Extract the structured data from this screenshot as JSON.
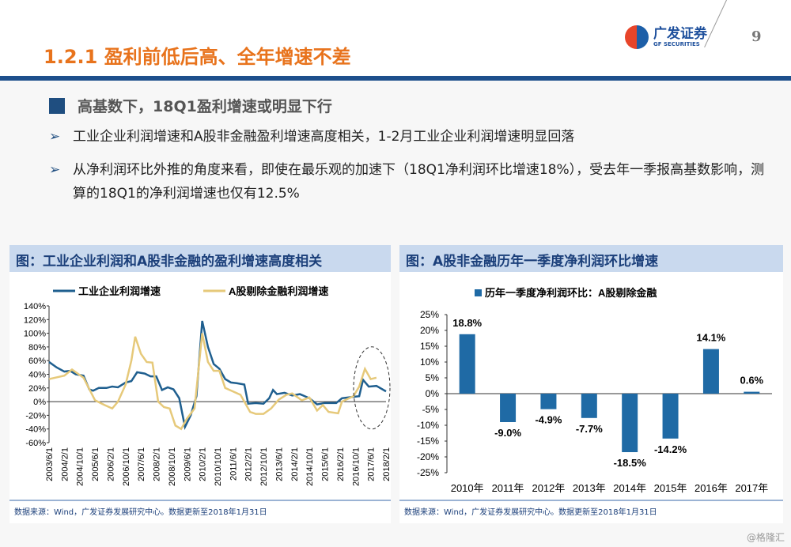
{
  "header": {
    "title": "1.2.1 盈利前低后高、全年增速不差",
    "logo_cn": "广发证券",
    "logo_en": "GF SECURITIES",
    "page": "9"
  },
  "main": {
    "heading": "高基数下，18Q1盈利增速或明显下行",
    "bullets": [
      "工业企业利润增速和A股非金融盈利增速高度相关，1-2月工业企业利润增速明显回落",
      "从净利润环比外推的角度来看，即使在最乐观的加速下（18Q1净利润环比增速18%），受去年一季报高基数影响，测算的18Q1的净利润增速也仅有12.5%"
    ],
    "bullet_icon": "arrow-right-icon"
  },
  "watermark": "@格隆汇",
  "chart_data": [
    {
      "type": "line",
      "title": "图：工业企业利润和A股非金融的盈利增速高度相关",
      "source": "数据来源：Wind，广发证券发展研究中心。数据更新至2018年1月31日",
      "ylim": [
        -60,
        140
      ],
      "yticks": [
        "140%",
        "120%",
        "100%",
        "80%",
        "60%",
        "40%",
        "20%",
        "0%",
        "-20%",
        "-40%",
        "-60%"
      ],
      "xticks": [
        "2003/6/1",
        "2004/2/1",
        "2004/10/1",
        "2005/6/1",
        "2006/2/1",
        "2006/10/1",
        "2007/6/1",
        "2008/2/1",
        "2008/10/1",
        "2009/6/1",
        "2010/2/1",
        "2010/10/1",
        "2011/6/1",
        "2012/2/1",
        "2012/10/1",
        "2013/6/1",
        "2014/2/1",
        "2014/10/1",
        "2015/6/1",
        "2016/2/1",
        "2016/10/1",
        "2017/6/1",
        "2018/2/1"
      ],
      "xrange": [
        "2003-06",
        "2018-02"
      ],
      "legend": "top",
      "annotation": "dashed ellipse around 2016/10–2018/2",
      "series": [
        {
          "name": "工业企业利润增速",
          "color": "#1f5f8f",
          "points": [
            [
              "2003-06",
              58
            ],
            [
              "2003-10",
              50
            ],
            [
              "2004-02",
              44
            ],
            [
              "2004-05",
              45
            ],
            [
              "2004-08",
              40
            ],
            [
              "2004-12",
              38
            ],
            [
              "2005-03",
              18
            ],
            [
              "2005-05",
              16
            ],
            [
              "2005-08",
              20
            ],
            [
              "2005-12",
              20
            ],
            [
              "2006-03",
              22
            ],
            [
              "2006-06",
              21
            ],
            [
              "2006-10",
              28
            ],
            [
              "2007-01",
              30
            ],
            [
              "2007-04",
              43
            ],
            [
              "2007-08",
              41
            ],
            [
              "2007-11",
              37
            ],
            [
              "2008-02",
              37
            ],
            [
              "2008-05",
              17
            ],
            [
              "2008-08",
              21
            ],
            [
              "2008-11",
              18
            ],
            [
              "2009-02",
              5
            ],
            [
              "2009-05",
              -37
            ],
            [
              "2009-08",
              -20
            ],
            [
              "2009-11",
              8
            ],
            [
              "2010-02",
              118
            ],
            [
              "2010-05",
              80
            ],
            [
              "2010-08",
              55
            ],
            [
              "2010-11",
              48
            ],
            [
              "2011-02",
              33
            ],
            [
              "2011-05",
              28
            ],
            [
              "2011-08",
              27
            ],
            [
              "2011-12",
              25
            ],
            [
              "2012-02",
              -3
            ],
            [
              "2012-06",
              -2
            ],
            [
              "2012-10",
              -3
            ],
            [
              "2013-01",
              5
            ],
            [
              "2013-03",
              17
            ],
            [
              "2013-05",
              11
            ],
            [
              "2013-09",
              13
            ],
            [
              "2014-01",
              9
            ],
            [
              "2014-05",
              11
            ],
            [
              "2014-10",
              5
            ],
            [
              "2015-02",
              -4
            ],
            [
              "2015-06",
              -2
            ],
            [
              "2015-12",
              -2
            ],
            [
              "2016-03",
              5
            ],
            [
              "2016-09",
              7
            ],
            [
              "2016-12",
              8
            ],
            [
              "2017-02",
              32
            ],
            [
              "2017-05",
              22
            ],
            [
              "2017-09",
              23
            ],
            [
              "2018-02",
              15
            ]
          ]
        },
        {
          "name": "A股剔除金融利润增速",
          "color": "#e6c97a",
          "points": [
            [
              "2003-06",
              33
            ],
            [
              "2004-02",
              38
            ],
            [
              "2004-06",
              47
            ],
            [
              "2004-12",
              35
            ],
            [
              "2005-06",
              2
            ],
            [
              "2005-11",
              -5
            ],
            [
              "2006-03",
              -10
            ],
            [
              "2006-06",
              0
            ],
            [
              "2006-10",
              25
            ],
            [
              "2007-01",
              60
            ],
            [
              "2007-03",
              95
            ],
            [
              "2007-06",
              70
            ],
            [
              "2007-09",
              58
            ],
            [
              "2007-12",
              57
            ],
            [
              "2008-03",
              0
            ],
            [
              "2008-06",
              -8
            ],
            [
              "2008-09",
              -10
            ],
            [
              "2008-12",
              -35
            ],
            [
              "2009-03",
              -40
            ],
            [
              "2009-06",
              -25
            ],
            [
              "2009-10",
              -10
            ],
            [
              "2010-02",
              100
            ],
            [
              "2010-05",
              58
            ],
            [
              "2010-08",
              45
            ],
            [
              "2010-11",
              45
            ],
            [
              "2011-02",
              20
            ],
            [
              "2011-06",
              15
            ],
            [
              "2011-10",
              10
            ],
            [
              "2012-03",
              -15
            ],
            [
              "2012-06",
              -18
            ],
            [
              "2012-10",
              -18
            ],
            [
              "2013-02",
              -10
            ],
            [
              "2013-06",
              3
            ],
            [
              "2013-10",
              10
            ],
            [
              "2014-01",
              12
            ],
            [
              "2014-06",
              2
            ],
            [
              "2014-10",
              6
            ],
            [
              "2015-02",
              -13
            ],
            [
              "2015-05",
              -5
            ],
            [
              "2015-08",
              -15
            ],
            [
              "2016-01",
              -17
            ],
            [
              "2016-03",
              0
            ],
            [
              "2016-09",
              8
            ],
            [
              "2016-12",
              22
            ],
            [
              "2017-03",
              48
            ],
            [
              "2017-06",
              33
            ],
            [
              "2017-09",
              35
            ]
          ]
        }
      ]
    },
    {
      "type": "bar",
      "title": "图：A股非金融历年一季度净利润环比增速",
      "source": "数据来源：Wind，广发证券发展研究中心。数据更新至2018年1月31日",
      "legend": "top",
      "series_name": "历年一季度净利润环比：A股剔除金融",
      "color": "#1f6aa5",
      "ylim": [
        -25,
        25
      ],
      "yticks": [
        "25%",
        "20%",
        "15%",
        "10%",
        "5%",
        "0%",
        "-5%",
        "-10%",
        "-15%",
        "-20%",
        "-25%"
      ],
      "categories": [
        "2010年",
        "2011年",
        "2012年",
        "2013年",
        "2014年",
        "2015年",
        "2016年",
        "2017年"
      ],
      "values": [
        18.8,
        -9.0,
        -4.9,
        -7.7,
        -18.5,
        -14.2,
        14.1,
        0.6
      ],
      "labels": [
        "18.8%",
        "-9.0%",
        "-4.9%",
        "-7.7%",
        "-18.5%",
        "-14.2%",
        "14.1%",
        "0.6%"
      ]
    }
  ]
}
